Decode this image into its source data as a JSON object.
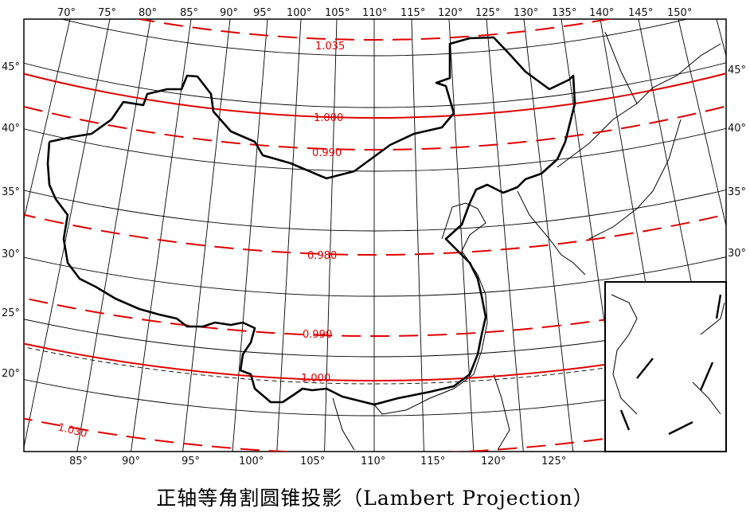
{
  "colors": {
    "graticule": "#000000",
    "isoline": "#e00000",
    "boundary": "#000000"
  },
  "map": {
    "projection_note": "正轴等角割圆锥投影",
    "top_longitudes": [
      "70°",
      "75°",
      "80°",
      "85°",
      "90°",
      "95°",
      "100°",
      "105°",
      "110°",
      "115°",
      "120°",
      "125°",
      "130°",
      "135°",
      "140°",
      "145°",
      "150°"
    ],
    "bottom_longitudes": [
      "85°",
      "90°",
      "95°",
      "100°",
      "105°",
      "110°",
      "115°",
      "120°",
      "125°"
    ],
    "left_latitudes": [
      "45°",
      "40°",
      "35°",
      "30°",
      "25°",
      "20°"
    ],
    "right_latitudes": [
      "45°",
      "40°",
      "35°",
      "30°"
    ],
    "scale_isolines": [
      {
        "label": "1.035",
        "style": "dashed"
      },
      {
        "label": "1.000",
        "style": "solid"
      },
      {
        "label": "0.990",
        "style": "dashed"
      },
      {
        "label": "0.980",
        "style": "dashed"
      },
      {
        "label": "0.990",
        "style": "dashed"
      },
      {
        "label": "1.000",
        "style": "solid"
      },
      {
        "label": "1.030",
        "style": "dashed"
      }
    ]
  },
  "caption": "正轴等角割圆锥投影（Lambert Projection）"
}
